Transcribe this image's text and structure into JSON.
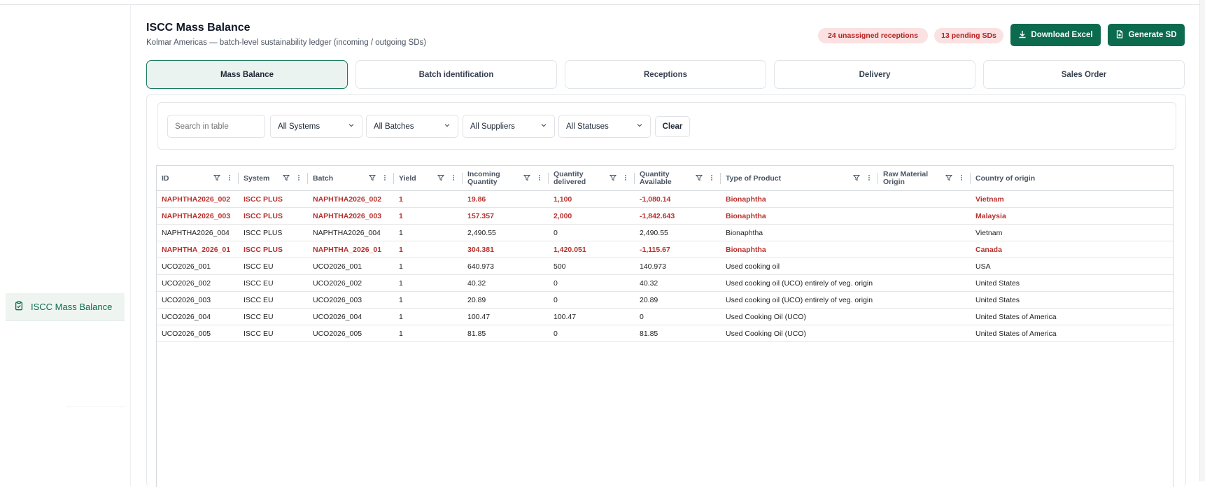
{
  "sidebar": {
    "items": [
      {
        "label": "ISCC Mass Balance",
        "icon": "clipboard-check-icon",
        "active": true
      }
    ]
  },
  "header": {
    "title": "ISCC Mass Balance",
    "subtitle": "Kolmar Americas — batch-level sustainability ledger (incoming / outgoing SDs)",
    "badges": {
      "unassigned": "24 unassigned receptions",
      "pending": "13 pending SDs"
    },
    "download_label": "Download Excel",
    "generate_label": "Generate SD"
  },
  "tabs": [
    {
      "label": "Mass Balance",
      "active": true
    },
    {
      "label": "Batch identification",
      "active": false
    },
    {
      "label": "Receptions",
      "active": false
    },
    {
      "label": "Delivery",
      "active": false
    },
    {
      "label": "Sales Order",
      "active": false
    }
  ],
  "filters": {
    "search_placeholder": "Search in table",
    "systems": "All Systems",
    "batches": "All Batches",
    "suppliers": "All Suppliers",
    "statuses": "All Statuses",
    "clear_label": "Clear"
  },
  "table": {
    "headers": [
      {
        "line1": "ID",
        "line2": ""
      },
      {
        "line1": "System",
        "line2": ""
      },
      {
        "line1": "Batch",
        "line2": ""
      },
      {
        "line1": "Yield",
        "line2": ""
      },
      {
        "line1": "Incoming",
        "line2": "Quantity"
      },
      {
        "line1": "Quantity",
        "line2": "delivered"
      },
      {
        "line1": "Quantity",
        "line2": "Available"
      },
      {
        "line1": "Type of Product",
        "line2": ""
      },
      {
        "line1": "Raw Material",
        "line2": "Origin"
      },
      {
        "line1": "Country of origin",
        "line2": ""
      }
    ],
    "rows": [
      {
        "status": "error",
        "cells": [
          "NAPHTHA2026_002",
          "ISCC PLUS",
          "NAPHTHA2026_002",
          "1",
          "19.86",
          "1,100",
          "-1,080.14",
          "Bionaphtha",
          "",
          "Vietnam"
        ]
      },
      {
        "status": "error",
        "cells": [
          "NAPHTHA2026_003",
          "ISCC PLUS",
          "NAPHTHA2026_003",
          "1",
          "157.357",
          "2,000",
          "-1,842.643",
          "Bionaphtha",
          "",
          "Malaysia"
        ]
      },
      {
        "status": "ok",
        "cells": [
          "NAPHTHA2026_004",
          "ISCC PLUS",
          "NAPHTHA2026_004",
          "1",
          "2,490.55",
          "0",
          "2,490.55",
          "Bionaphtha",
          "",
          "Vietnam"
        ]
      },
      {
        "status": "error",
        "cells": [
          "NAPHTHA_2026_01",
          "ISCC PLUS",
          "NAPHTHA_2026_01",
          "1",
          "304.381",
          "1,420.051",
          "-1,115.67",
          "Bionaphtha",
          "",
          "Canada"
        ]
      },
      {
        "status": "ok",
        "cells": [
          "UCO2026_001",
          "ISCC EU",
          "UCO2026_001",
          "1",
          "640.973",
          "500",
          "140.973",
          "Used cooking oil",
          "",
          "USA"
        ]
      },
      {
        "status": "ok",
        "cells": [
          "UCO2026_002",
          "ISCC EU",
          "UCO2026_002",
          "1",
          "40.32",
          "0",
          "40.32",
          "Used cooking oil (UCO) entirely of veg. origin",
          "",
          "United States"
        ]
      },
      {
        "status": "ok",
        "cells": [
          "UCO2026_003",
          "ISCC EU",
          "UCO2026_003",
          "1",
          "20.89",
          "0",
          "20.89",
          "Used cooking oil (UCO) entirely of veg. origin",
          "",
          "United States"
        ]
      },
      {
        "status": "ok",
        "cells": [
          "UCO2026_004",
          "ISCC EU",
          "UCO2026_004",
          "1",
          "100.47",
          "100.47",
          "0",
          "Used Cooking Oil (UCO)",
          "",
          "United States of America"
        ]
      },
      {
        "status": "ok",
        "cells": [
          "UCO2026_005",
          "ISCC EU",
          "UCO2026_005",
          "1",
          "81.85",
          "0",
          "81.85",
          "Used Cooking Oil (UCO)",
          "",
          "United States of America"
        ]
      }
    ]
  },
  "colors": {
    "accent": "#0c6b4f",
    "error_text": "#b8322e",
    "badge_bg": "#fbe1e1"
  }
}
